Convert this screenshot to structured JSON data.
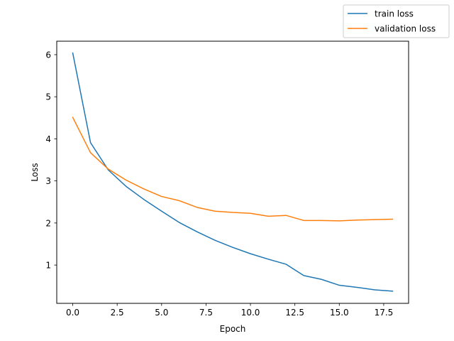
{
  "chart_data": {
    "type": "line",
    "xlabel": "Epoch",
    "ylabel": "Loss",
    "xlim": [
      -0.9,
      18.9
    ],
    "ylim": [
      0.09,
      6.32
    ],
    "xticks": [
      0.0,
      2.5,
      5.0,
      7.5,
      10.0,
      12.5,
      15.0,
      17.5
    ],
    "xtick_labels": [
      "0.0",
      "2.5",
      "5.0",
      "7.5",
      "10.0",
      "12.5",
      "15.0",
      "17.5"
    ],
    "yticks": [
      1,
      2,
      3,
      4,
      5,
      6
    ],
    "ytick_labels": [
      "1",
      "2",
      "3",
      "4",
      "5",
      "6"
    ],
    "grid": false,
    "legend_position": "top-right, outside axes",
    "x": [
      0,
      1,
      2,
      3,
      4,
      5,
      6,
      7,
      8,
      9,
      10,
      11,
      12,
      13,
      14,
      15,
      16,
      17,
      18
    ],
    "series": [
      {
        "name": "train loss",
        "color": "#1f77b4",
        "values": [
          6.04,
          3.91,
          3.26,
          2.87,
          2.56,
          2.28,
          2.01,
          1.79,
          1.59,
          1.42,
          1.27,
          1.14,
          1.02,
          0.75,
          0.66,
          0.52,
          0.47,
          0.41,
          0.38
        ]
      },
      {
        "name": "validation loss",
        "color": "#ff7f0e",
        "values": [
          4.51,
          3.67,
          3.28,
          3.02,
          2.81,
          2.63,
          2.53,
          2.37,
          2.28,
          2.25,
          2.23,
          2.16,
          2.18,
          2.06,
          2.06,
          2.05,
          2.07,
          2.08,
          2.09
        ]
      }
    ]
  }
}
